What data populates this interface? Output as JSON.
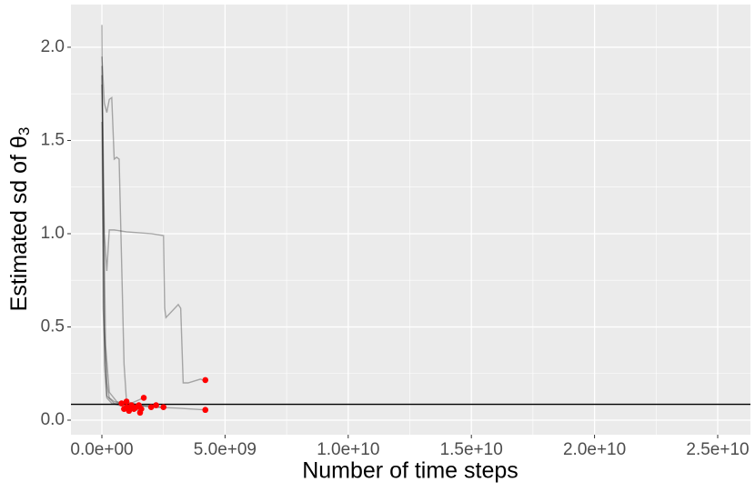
{
  "chart_data": {
    "type": "line",
    "x_label": "Number of time steps",
    "y_label": "Estimated sd of θ",
    "y_label_subscript": "3",
    "xlim": [
      -1256000000,
      26330000000
    ],
    "ylim": [
      -0.078,
      2.229
    ],
    "xticks": [
      {
        "value": 0,
        "label": "0.0e+00"
      },
      {
        "value": 5000000000,
        "label": "5.0e+09"
      },
      {
        "value": 10000000000,
        "label": "1.0e+10"
      },
      {
        "value": 15000000000,
        "label": "1.5e+10"
      },
      {
        "value": 20000000000,
        "label": "2.0e+10"
      },
      {
        "value": 25000000000,
        "label": "2.5e+10"
      }
    ],
    "yticks": [
      {
        "value": 0,
        "label": "0.0"
      },
      {
        "value": 0.5,
        "label": "0.5"
      },
      {
        "value": 1,
        "label": "1.0"
      },
      {
        "value": 1.5,
        "label": "1.5"
      },
      {
        "value": 2,
        "label": "2.0"
      }
    ],
    "minor_xticks": [
      2500000000,
      7500000000,
      12500000000,
      17500000000,
      22500000000
    ],
    "minor_yticks": [
      0.25,
      0.75,
      1.25,
      1.75
    ],
    "grid": true,
    "line_color": "#000000",
    "line_opacity": 0.3,
    "series": [
      {
        "x": [
          0,
          50000000,
          100000000,
          200000000,
          300000000,
          500000000,
          1000000000,
          2000000000,
          2500000000,
          2550000000,
          2600000000,
          3100000000,
          3200000000,
          3300000000,
          3500000000,
          4000000000,
          4200000000
        ],
        "values": [
          1.9,
          1.5,
          1.0,
          0.8,
          1.02,
          1.02,
          1.01,
          1.0,
          0.99,
          0.6,
          0.55,
          0.62,
          0.6,
          0.2,
          0.2,
          0.22,
          0.21
        ]
      },
      {
        "x": [
          0,
          100000000,
          200000000,
          300000000,
          400000000,
          500000000,
          600000000,
          700000000,
          900000000,
          1000000000,
          1500000000,
          2000000000,
          3000000000,
          4200000000
        ],
        "values": [
          1.95,
          1.7,
          1.65,
          1.72,
          1.73,
          1.4,
          1.41,
          1.4,
          0.3,
          0.1,
          0.08,
          0.07,
          0.065,
          0.055
        ]
      },
      {
        "x": [
          0,
          50000000,
          100000000,
          200000000,
          300000000,
          500000000,
          1000000000,
          1700000000
        ],
        "values": [
          2.12,
          1.2,
          0.5,
          0.2,
          0.12,
          0.1,
          0.08,
          0.12
        ]
      },
      {
        "x": [
          0,
          100000000,
          200000000,
          400000000,
          1000000000,
          1500000000
        ],
        "values": [
          1.85,
          0.3,
          0.12,
          0.09,
          0.07,
          0.05
        ]
      },
      {
        "x": [
          0,
          150000000,
          300000000,
          600000000,
          1200000000,
          2500000000
        ],
        "values": [
          1.8,
          0.4,
          0.15,
          0.1,
          0.08,
          0.07
        ]
      },
      {
        "x": [
          0,
          50000000,
          200000000,
          500000000,
          1000000000,
          2000000000
        ],
        "values": [
          1.6,
          0.6,
          0.13,
          0.09,
          0.09,
          0.08
        ]
      }
    ],
    "points": {
      "color": "#ff0000",
      "x": [
        4200000000,
        4200000000,
        1700000000,
        800000000,
        900000000,
        1000000000,
        1100000000,
        1200000000,
        1300000000,
        1400000000,
        1500000000,
        1550000000,
        1600000000,
        2000000000,
        2200000000,
        2500000000,
        1000000000,
        1200000000
      ],
      "values": [
        0.215,
        0.055,
        0.12,
        0.09,
        0.06,
        0.07,
        0.05,
        0.08,
        0.06,
        0.07,
        0.08,
        0.04,
        0.06,
        0.07,
        0.08,
        0.07,
        0.1,
        0.065
      ]
    },
    "hline": {
      "value": 0.085,
      "color": "#000000"
    }
  }
}
